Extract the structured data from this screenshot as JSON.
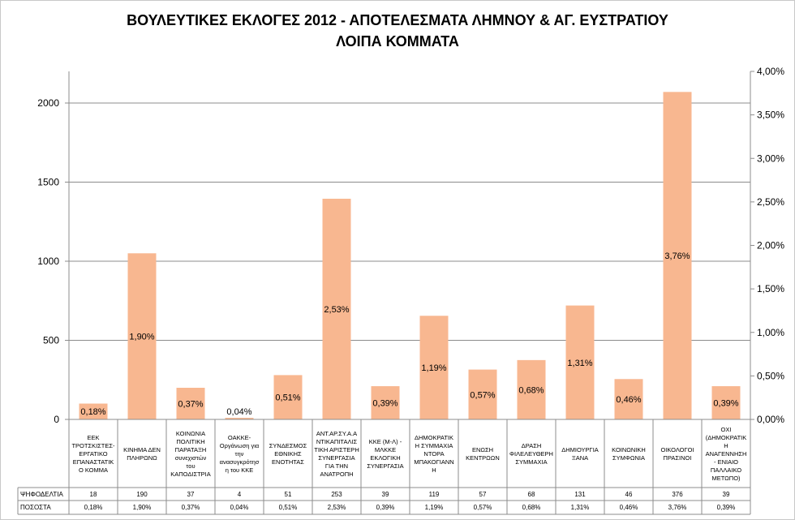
{
  "chart_data": {
    "type": "bar",
    "title": "ΒΟΥΛΕΥΤΙΚΕΣ ΕΚΛΟΓΕΣ 2012 - ΑΠΟΤΕΛΕΣΜΑΤΑ ΛΗΜΝΟΥ & ΑΓ. ΕΥΣΤΡΑΤΙΟΥ",
    "subtitle": "ΛΟΙΠΑ ΚΟΜΜΑΤΑ",
    "categories": [
      "ΕΕΚ ΤΡΟΤΣΚΙΣΤΕΣ-ΕΡΓΑΤΙΚΟ ΕΠΑΝΑΣΤΑΤΙΚΟ ΚΟΜΜΑ",
      "ΚΙΝΗΜΑ ΔΕΝ ΠΛΗΡΩΝΩ",
      "ΚΟΙΝΩΝΙΑ ΠΟΛΙΤΙΚΗ ΠΑΡΑΤΑΞΗ συνεχιστών του ΚΑΠΟΔΙΣΤΡΙΑ",
      "ΟΑΚΚΕ-Οργάνωση για την ανασυγκρότηση του ΚΚΕ",
      "ΣΥΝΔΕΣΜΟΣ ΕΘΝΙΚΗΣ ΕΝΟΤΗΤΑΣ",
      "ΑΝΤ.ΑΡ.ΣΥ.Α.Α ΑΝΤΙΚΑΠΙΤΑΛΙΣΤΙΚΗ ΑΡΙΣΤΕΡΗ ΣΥΝΕΡΓΑΣΙΑ ΓΙΑ ΤΗΝ ΑΝΑΤΡΟΠΗ",
      "ΚΚΕ (Μ-Λ) - ΜΛΚΚΕ ΕΚΛΟΓΙΚΗ ΣΥΝΕΡΓΑΣΙΑ",
      "ΔΗΜΟΚΡΑΤΙΚΗ ΣΥΜΜΑΧΙΑ ΝΤΟΡΑ ΜΠΑΚΟΓΙΑΝΝΗ",
      "ΕΝΩΣΗ ΚΕΝΤΡΩΩΝ",
      "ΔΡΑΣΗ ΦΙΛΕΛΕΥΘΕΡΗ ΣΥΜΜΑΧΙΑ",
      "ΔΗΜΙΟΥΡΓΙΑ ΞΑΝΑ",
      "ΚΟΙΝΩΝΙΚΗ ΣΥΜΦΩΝΙΑ",
      "ΟΙΚΟΛΟΓΟΙ ΠΡΑΣΙΝΟΙ",
      "ΟΧΙ (ΔΗΜΟΚΡΑΤΙΚΗ ΑΝΑΓΕΝΝΗΣΗ - ΕΝΙΑΙΟ ΠΑΛΛΑΙΚΟ ΜΕΤΩΠΟ)"
    ],
    "category_lines": [
      [
        "ΕΕΚ",
        "ΤΡΟΤΣΚΙΣΤΕΣ-",
        "ΕΡΓΑΤΙΚΟ",
        "ΕΠΑΝΑΣΤΑΤΙΚ",
        "Ο ΚΟΜΜΑ"
      ],
      [
        "ΚΙΝΗΜΑ ΔΕΝ",
        "ΠΛΗΡΩΝΩ"
      ],
      [
        "ΚΟΙΝΩΝΙΑ",
        "ΠΟΛΙΤΙΚΗ",
        "ΠΑΡΑΤΑΞΗ",
        "συνεχιστών",
        "του",
        "ΚΑΠΟΔΙΣΤΡΙΑ"
      ],
      [
        "ΟΑΚΚΕ-",
        "Οργάνωση για",
        "την",
        "ανασυγκρότησ",
        "η του ΚΚΕ"
      ],
      [
        "ΣΥΝΔΕΣΜΟΣ",
        "ΕΘΝΙΚΗΣ",
        "ΕΝΟΤΗΤΑΣ"
      ],
      [
        "ΑΝΤ.ΑΡ.ΣΥ.Α.Α",
        "ΝΤΙΚΑΠΙΤΑΛΙΣ",
        "ΤΙΚΗ ΑΡΙΣΤΕΡΗ",
        "ΣΥΝΕΡΓΑΣΙΑ",
        "ΓΙΑ ΤΗΝ",
        "ΑΝΑΤΡΟΠΗ"
      ],
      [
        "ΚΚΕ (Μ-Λ) -",
        "ΜΛΚΚΕ",
        "ΕΚΛΟΓΙΚΗ",
        "ΣΥΝΕΡΓΑΣΙΑ"
      ],
      [
        "ΔΗΜΟΚΡΑΤΙΚ",
        "Η ΣΥΜΜΑΧΙΑ",
        "ΝΤΟΡΑ",
        "ΜΠΑΚΟΓΙΑΝΝ",
        "Η"
      ],
      [
        "ΕΝΩΣΗ",
        "ΚΕΝΤΡΩΩΝ"
      ],
      [
        "ΔΡΑΣΗ",
        "ΦΙΛΕΛΕΥΘΕΡΗ",
        "ΣΥΜΜΑΧΙΑ"
      ],
      [
        "ΔΗΜΙΟΥΡΓΙΑ",
        "ΞΑΝΑ"
      ],
      [
        "ΚΟΙΝΩΝΙΚΗ",
        "ΣΥΜΦΩΝΙΑ"
      ],
      [
        "ΟΙΚΟΛΟΓΟΙ",
        "ΠΡΑΣΙΝΟΙ"
      ],
      [
        "ΟΧΙ",
        "(ΔΗΜΟΚΡΑΤΙΚ",
        "Η",
        "ΑΝΑΓΕΝΝΗΣΗ",
        "- ΕΝΙΑΙΟ",
        "ΠΑΛΛΑΙΚΟ",
        "ΜΕΤΩΠΟ)"
      ]
    ],
    "series": [
      {
        "name": "ΨΗΦΟΔΕΛΤΙΑ",
        "axis": "left",
        "values": [
          18,
          190,
          37,
          4,
          51,
          253,
          39,
          119,
          57,
          68,
          131,
          46,
          376,
          39
        ],
        "display_values": [
          100,
          1050,
          200,
          10,
          280,
          1395,
          210,
          655,
          315,
          375,
          720,
          255,
          2070,
          210
        ]
      },
      {
        "name": "ΠΟΣΟΣΤΑ",
        "axis": "right",
        "values": [
          0.18,
          1.9,
          0.37,
          0.04,
          0.51,
          2.53,
          0.39,
          1.19,
          0.57,
          0.68,
          1.31,
          0.46,
          3.76,
          0.39
        ],
        "labels": [
          "0,18%",
          "1,90%",
          "0,37%",
          "0,04%",
          "0,51%",
          "2,53%",
          "0,39%",
          "1,19%",
          "0,57%",
          "0,68%",
          "1,31%",
          "0,46%",
          "3,76%",
          "0,39%"
        ]
      }
    ],
    "table_rows": [
      {
        "label": "ΨΗΦΟΔΕΛΤΙΑ",
        "cells": [
          "18",
          "190",
          "37",
          "4",
          "51",
          "253",
          "39",
          "119",
          "57",
          "68",
          "131",
          "46",
          "376",
          "39"
        ]
      },
      {
        "label": "ΠΟΣΟΣΤΑ",
        "cells": [
          "0,18%",
          "1,90%",
          "0,37%",
          "0,04%",
          "0,51%",
          "2,53%",
          "0,39%",
          "1,19%",
          "0,57%",
          "0,68%",
          "1,31%",
          "0,46%",
          "3,76%",
          "0,39%"
        ]
      }
    ],
    "y_left": {
      "ylim": [
        0,
        2200
      ],
      "ticks": [
        0,
        500,
        1000,
        1500,
        2000
      ]
    },
    "y_right": {
      "ylim": [
        0,
        4.0
      ],
      "ticks": [
        0,
        0.5,
        1.0,
        1.5,
        2.0,
        2.5,
        3.0,
        3.5,
        4.0
      ],
      "tick_labels": [
        "0,00%",
        "0,50%",
        "1,00%",
        "1,50%",
        "2,00%",
        "2,50%",
        "3,00%",
        "3,50%",
        "4,00%"
      ]
    },
    "grid": true,
    "colors": {
      "bar": "#f8b790",
      "grid": "#8c8c8c",
      "axis": "#8c8c8c"
    }
  }
}
